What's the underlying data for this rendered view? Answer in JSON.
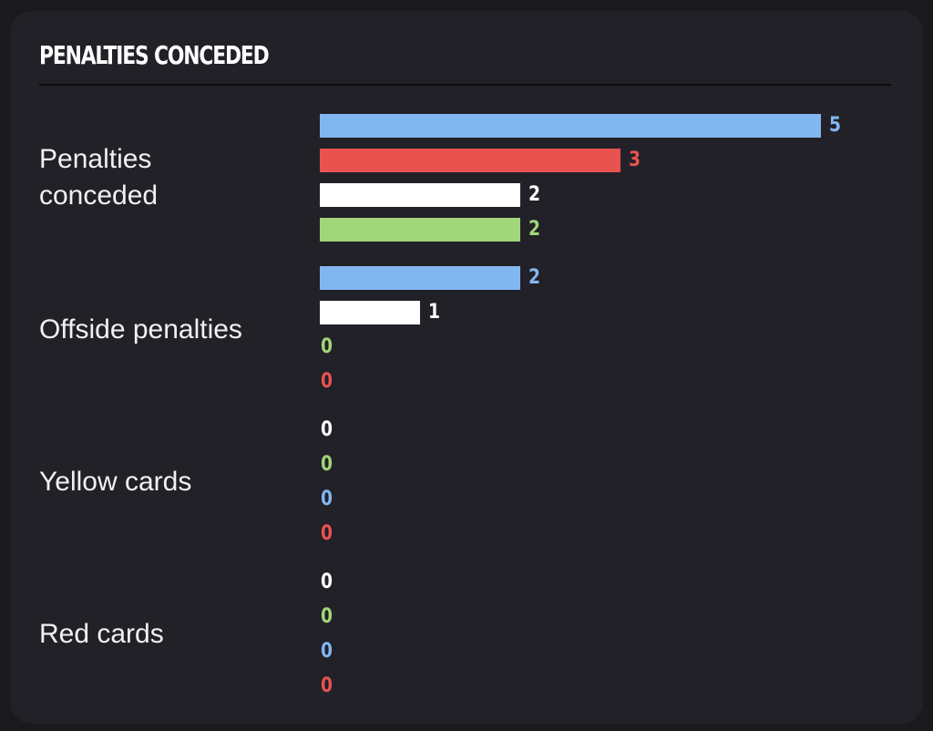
{
  "title": "PENALTIES CONCEDED",
  "chart_data": {
    "type": "bar",
    "orientation": "horizontal",
    "title": "PENALTIES CONCEDED",
    "categories": [
      "Penalties\nconceded",
      "Offside penalties",
      "Yellow cards",
      "Red cards"
    ],
    "groups": [
      {
        "label": "Penalties\nconceded",
        "bars": [
          {
            "value": 5,
            "color": "#82b6f0"
          },
          {
            "value": 3,
            "color": "#e85350"
          },
          {
            "value": 2,
            "color": "#ffffff"
          },
          {
            "value": 2,
            "color": "#a2d67a"
          }
        ]
      },
      {
        "label": "Offside penalties",
        "bars": [
          {
            "value": 2,
            "color": "#82b6f0"
          },
          {
            "value": 1,
            "color": "#ffffff"
          },
          {
            "value": 0,
            "color": "#a2d67a"
          },
          {
            "value": 0,
            "color": "#e85350"
          }
        ]
      },
      {
        "label": "Yellow cards",
        "bars": [
          {
            "value": 0,
            "color": "#ffffff"
          },
          {
            "value": 0,
            "color": "#a2d67a"
          },
          {
            "value": 0,
            "color": "#82b6f0"
          },
          {
            "value": 0,
            "color": "#e85350"
          }
        ]
      },
      {
        "label": "Red cards",
        "bars": [
          {
            "value": 0,
            "color": "#ffffff"
          },
          {
            "value": 0,
            "color": "#a2d67a"
          },
          {
            "value": 0,
            "color": "#82b6f0"
          },
          {
            "value": 0,
            "color": "#e85350"
          }
        ]
      }
    ],
    "xlim": [
      0,
      5
    ],
    "grid": false,
    "legend": "none"
  }
}
